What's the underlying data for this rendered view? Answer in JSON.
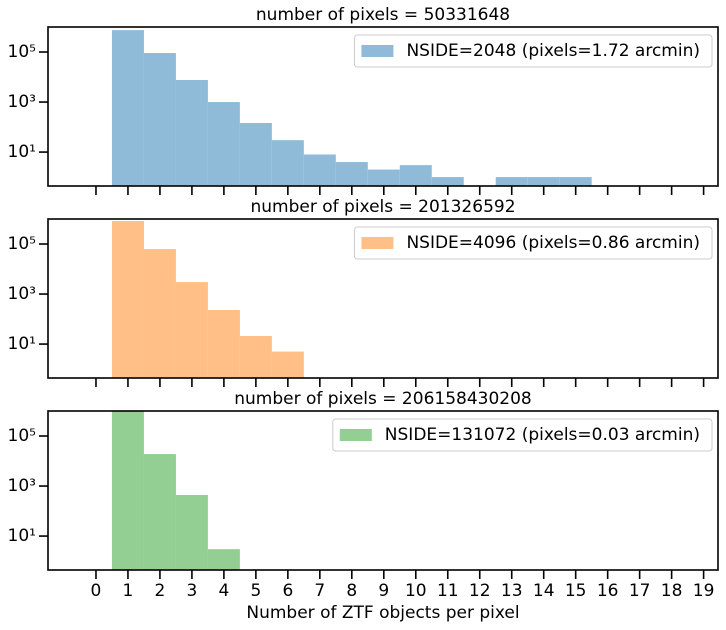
{
  "chart_data": [
    {
      "type": "histogram",
      "title": "number of pixels = 50331648",
      "bins": [
        0.5,
        1.5,
        2.5,
        3.5,
        4.5,
        5.5,
        6.5,
        7.5,
        8.5,
        9.5,
        10.5,
        11.5,
        12.5,
        13.5,
        14.5,
        15.5
      ],
      "series": [
        {
          "name": "NSIDE=2048 (pixels=1.72 arcmin)",
          "color": "#8fbbd9",
          "values": [
            750000,
            91000,
            7600,
            1000,
            145,
            30,
            8,
            4,
            2,
            3,
            1,
            0,
            1,
            1,
            1
          ]
        }
      ],
      "xlim": [
        -1.5,
        19.45
      ],
      "xticks": [
        0,
        1,
        2,
        3,
        4,
        5,
        6,
        7,
        8,
        9,
        10,
        11,
        12,
        13,
        14,
        15,
        16,
        17,
        18,
        19
      ],
      "xticklabels": false,
      "ylim": [
        0.44,
        1000000
      ],
      "log_y": true,
      "yticks": [
        {
          "value": 10,
          "label": "10¹"
        },
        {
          "value": 1000,
          "label": "10³"
        },
        {
          "value": 100000,
          "label": "10⁵"
        }
      ],
      "legend": "upper right"
    },
    {
      "type": "histogram",
      "title": "number of pixels = 201326592",
      "bins": [
        0.5,
        1.5,
        2.5,
        3.5,
        4.5,
        5.5,
        6.5
      ],
      "series": [
        {
          "name": "NSIDE=4096 (pixels=0.86 arcmin)",
          "color": "#ffbf86",
          "values": [
            830000,
            63000,
            3000,
            230,
            21,
            5
          ]
        }
      ],
      "xlim": [
        -1.5,
        19.45
      ],
      "xticks": [
        0,
        1,
        2,
        3,
        4,
        5,
        6,
        7,
        8,
        9,
        10,
        11,
        12,
        13,
        14,
        15,
        16,
        17,
        18,
        19
      ],
      "xticklabels": false,
      "ylim": [
        0.44,
        1000000
      ],
      "log_y": true,
      "yticks": [
        {
          "value": 10,
          "label": "10¹"
        },
        {
          "value": 1000,
          "label": "10³"
        },
        {
          "value": 100000,
          "label": "10⁵"
        }
      ],
      "legend": "upper right"
    },
    {
      "type": "histogram",
      "title": "number of pixels = 206158430208",
      "bins": [
        0.5,
        1.5,
        2.5,
        3.5,
        4.5
      ],
      "series": [
        {
          "name": "NSIDE=131072 (pixels=0.03 arcmin)",
          "color": "#93cf93",
          "values": [
            1000000,
            19000,
            440,
            3
          ]
        }
      ],
      "xlim": [
        -1.5,
        19.45
      ],
      "xticks": [
        0,
        1,
        2,
        3,
        4,
        5,
        6,
        7,
        8,
        9,
        10,
        11,
        12,
        13,
        14,
        15,
        16,
        17,
        18,
        19
      ],
      "xticklabels": true,
      "xlabel": "Number of ZTF objects per pixel",
      "ylim": [
        0.44,
        1000000
      ],
      "log_y": true,
      "yticks": [
        {
          "value": 10,
          "label": "10¹"
        },
        {
          "value": 1000,
          "label": "10³"
        },
        {
          "value": 100000,
          "label": "10⁵"
        }
      ],
      "legend": "upper right"
    }
  ]
}
